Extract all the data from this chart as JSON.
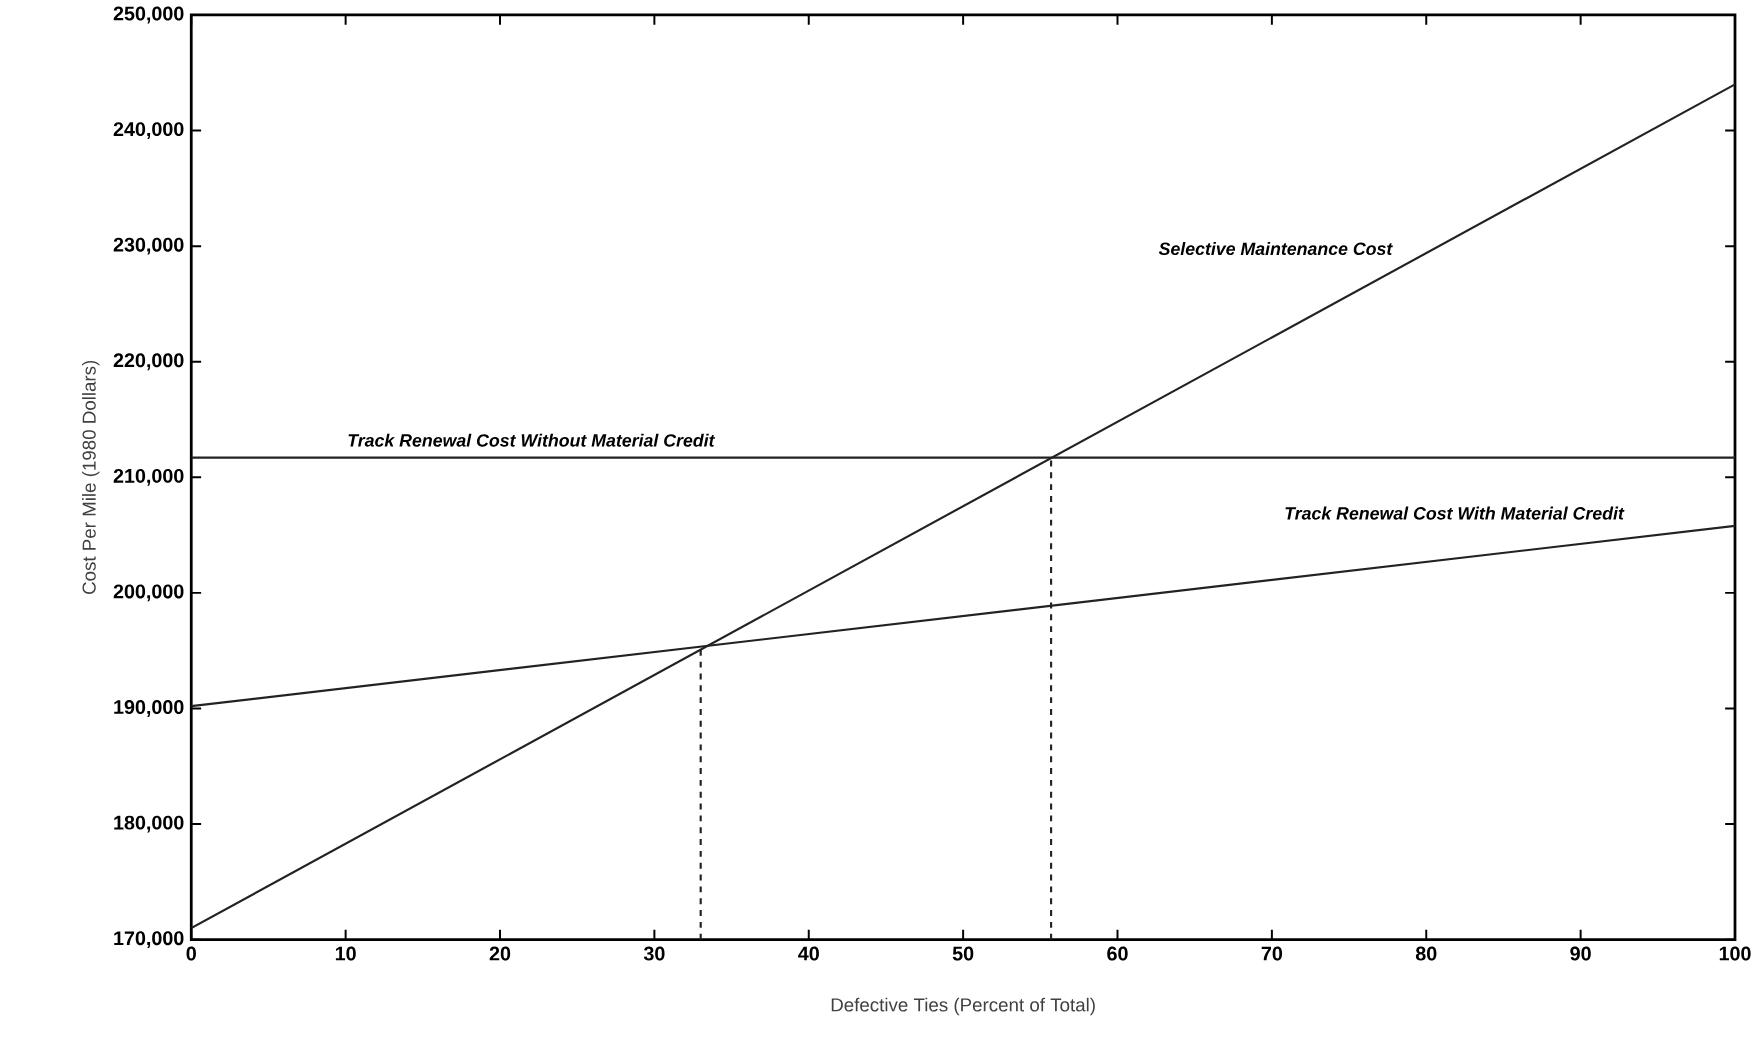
{
  "chart_data": {
    "type": "line",
    "xlabel": "Defective Ties (Percent of Total)",
    "ylabel": "Cost Per Mile (1980 Dollars)",
    "xlim": [
      0,
      100
    ],
    "xticks": [
      0,
      10,
      20,
      30,
      40,
      50,
      60,
      70,
      80,
      90,
      100
    ],
    "ylim": [
      170000,
      250000
    ],
    "yticks": [
      {
        "value": 170000,
        "label": "170,000"
      },
      {
        "value": 180000,
        "label": "180,000"
      },
      {
        "value": 190000,
        "label": "190,000"
      },
      {
        "value": 200000,
        "label": "200,000"
      },
      {
        "value": 210000,
        "label": "210,000"
      },
      {
        "value": 220000,
        "label": "220,000"
      },
      {
        "value": 230000,
        "label": "230,000"
      },
      {
        "value": 240000,
        "label": "240,000"
      },
      {
        "value": 250000,
        "label": "250,000"
      }
    ],
    "grid": false,
    "legend": false,
    "marker": "none",
    "series": [
      {
        "name": "Selective Maintenance Cost",
        "color": "#222222",
        "x": [
          0,
          100
        ],
        "values": [
          171000,
          244000
        ],
        "line_style": "solid"
      },
      {
        "name": "Track Renewal Cost Without Material Credit",
        "color": "#222222",
        "x": [
          0,
          100
        ],
        "values": [
          211700,
          211700
        ],
        "line_style": "solid"
      },
      {
        "name": "Track Renewal Cost With Material Credit",
        "color": "#222222",
        "x": [
          0,
          100
        ],
        "values": [
          190200,
          205800
        ],
        "line_style": "solid"
      },
      {
        "color": "#222222",
        "x": [
          33,
          33
        ],
        "values": [
          170000,
          195100
        ],
        "line_style": "dashed"
      },
      {
        "color": "#222222",
        "x": [
          55.7,
          55.7
        ],
        "values": [
          170000,
          211700
        ],
        "line_style": "dashed"
      }
    ]
  }
}
